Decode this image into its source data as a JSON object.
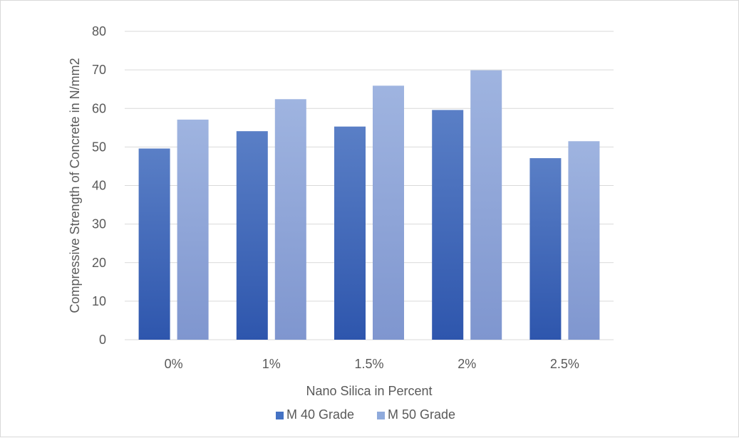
{
  "chart_data": {
    "type": "bar",
    "title": "",
    "xlabel": "Nano Silica in Percent",
    "ylabel": "Compressive Strength of Concrete in N/mm2",
    "categories": [
      "0%",
      "1%",
      "1.5%",
      "2%",
      "2.5%"
    ],
    "series": [
      {
        "name": "M 40 Grade",
        "values": [
          49.6,
          54.1,
          55.3,
          59.6,
          47.1
        ],
        "color": "#4472c4"
      },
      {
        "name": "M 50 Grade",
        "values": [
          57.1,
          62.4,
          65.9,
          69.9,
          51.5
        ],
        "color": "#8faadc"
      }
    ],
    "ylim": [
      0,
      80
    ],
    "yticks": [
      0,
      10,
      20,
      30,
      40,
      50,
      60,
      70,
      80
    ],
    "grid": true,
    "legend_position": "bottom"
  }
}
